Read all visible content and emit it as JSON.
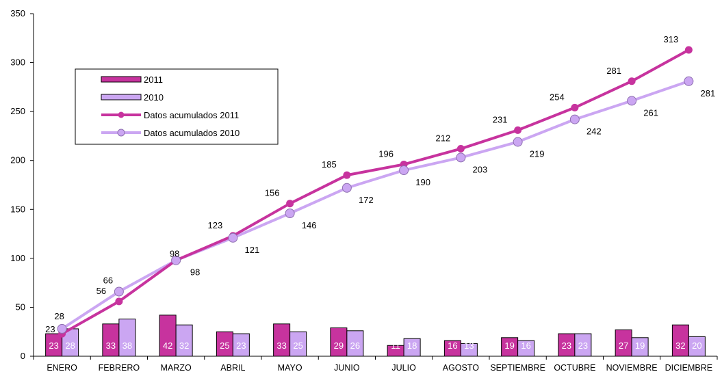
{
  "chart_data": {
    "type": "bar",
    "title": "",
    "xlabel": "",
    "ylabel": "",
    "ylim": [
      0,
      350
    ],
    "yticks": [
      0,
      50,
      100,
      150,
      200,
      250,
      300,
      350
    ],
    "grid": false,
    "legend_position": "top-left",
    "categories": [
      "ENERO",
      "FEBRERO",
      "MARZO",
      "ABRIL",
      "MAYO",
      "JUNIO",
      "JULIO",
      "AGOSTO",
      "SEPTIEMBRE",
      "OCTUBRE",
      "NOVIEMBRE",
      "DICIEMBRE"
    ],
    "series": [
      {
        "name": "2011",
        "type": "bar",
        "color": "#C7339E",
        "values": [
          23,
          33,
          42,
          25,
          33,
          29,
          11,
          16,
          19,
          23,
          27,
          32
        ]
      },
      {
        "name": "2010",
        "type": "bar",
        "color": "#CBA6F2",
        "values": [
          28,
          38,
          32,
          23,
          25,
          26,
          18,
          13,
          16,
          23,
          19,
          20
        ]
      },
      {
        "name": "Datos acumulados 2011",
        "type": "line",
        "color": "#C7339E",
        "values": [
          23,
          56,
          98,
          123,
          156,
          185,
          196,
          212,
          231,
          254,
          281,
          313
        ]
      },
      {
        "name": "Datos acumulados 2010",
        "type": "line",
        "color": "#CBA6F2",
        "values": [
          28,
          66,
          98,
          121,
          146,
          172,
          190,
          203,
          219,
          242,
          261,
          281
        ]
      }
    ]
  }
}
